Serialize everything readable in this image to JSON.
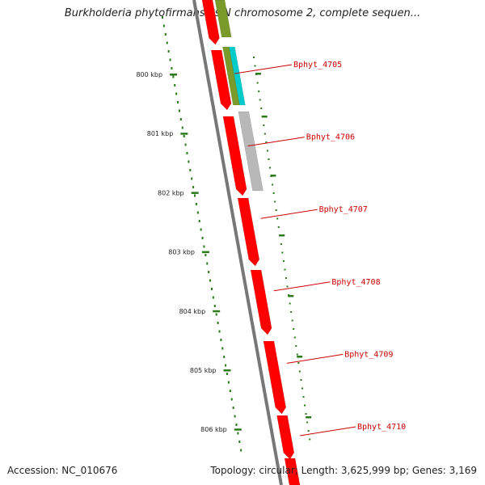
{
  "title": "Burkholderia phytofirmans PsJN chromosome 2, complete sequen...",
  "footer": {
    "accession": "Accession: NC_010676",
    "stats": "Topology: circular; Length: 3,625,999 bp; Genes: 3,169"
  },
  "ticks": [
    {
      "label": "800 kbp",
      "kbp": 800
    },
    {
      "label": "801 kbp",
      "kbp": 801
    },
    {
      "label": "802 kbp",
      "kbp": 802
    },
    {
      "label": "803 kbp",
      "kbp": 803
    },
    {
      "label": "804 kbp",
      "kbp": 804
    },
    {
      "label": "805 kbp",
      "kbp": 805
    },
    {
      "label": "806 kbp",
      "kbp": 806
    }
  ],
  "genes": [
    {
      "name": "Bphyt_4705",
      "track": "outer",
      "color": "#ff0000"
    },
    {
      "name": "Bphyt_4706",
      "track": "outer",
      "color": "#ff0000"
    },
    {
      "name": "Bphyt_4707",
      "track": "outer",
      "color": "#ff0000"
    },
    {
      "name": "Bphyt_4708",
      "track": "outer",
      "color": "#ff0000"
    },
    {
      "name": "Bphyt_4709",
      "track": "outer",
      "color": "#ff0000"
    },
    {
      "name": "Bphyt_4710",
      "track": "outer",
      "color": "#ff0000"
    }
  ],
  "colors": {
    "cds": "#ff0000",
    "gene": "#7a9a2a",
    "rna": "#00cccc",
    "misc": "#b8b8b8",
    "backbone": "#777777",
    "gc_ticks": "#2a7a1a",
    "label": "#cc0000"
  }
}
